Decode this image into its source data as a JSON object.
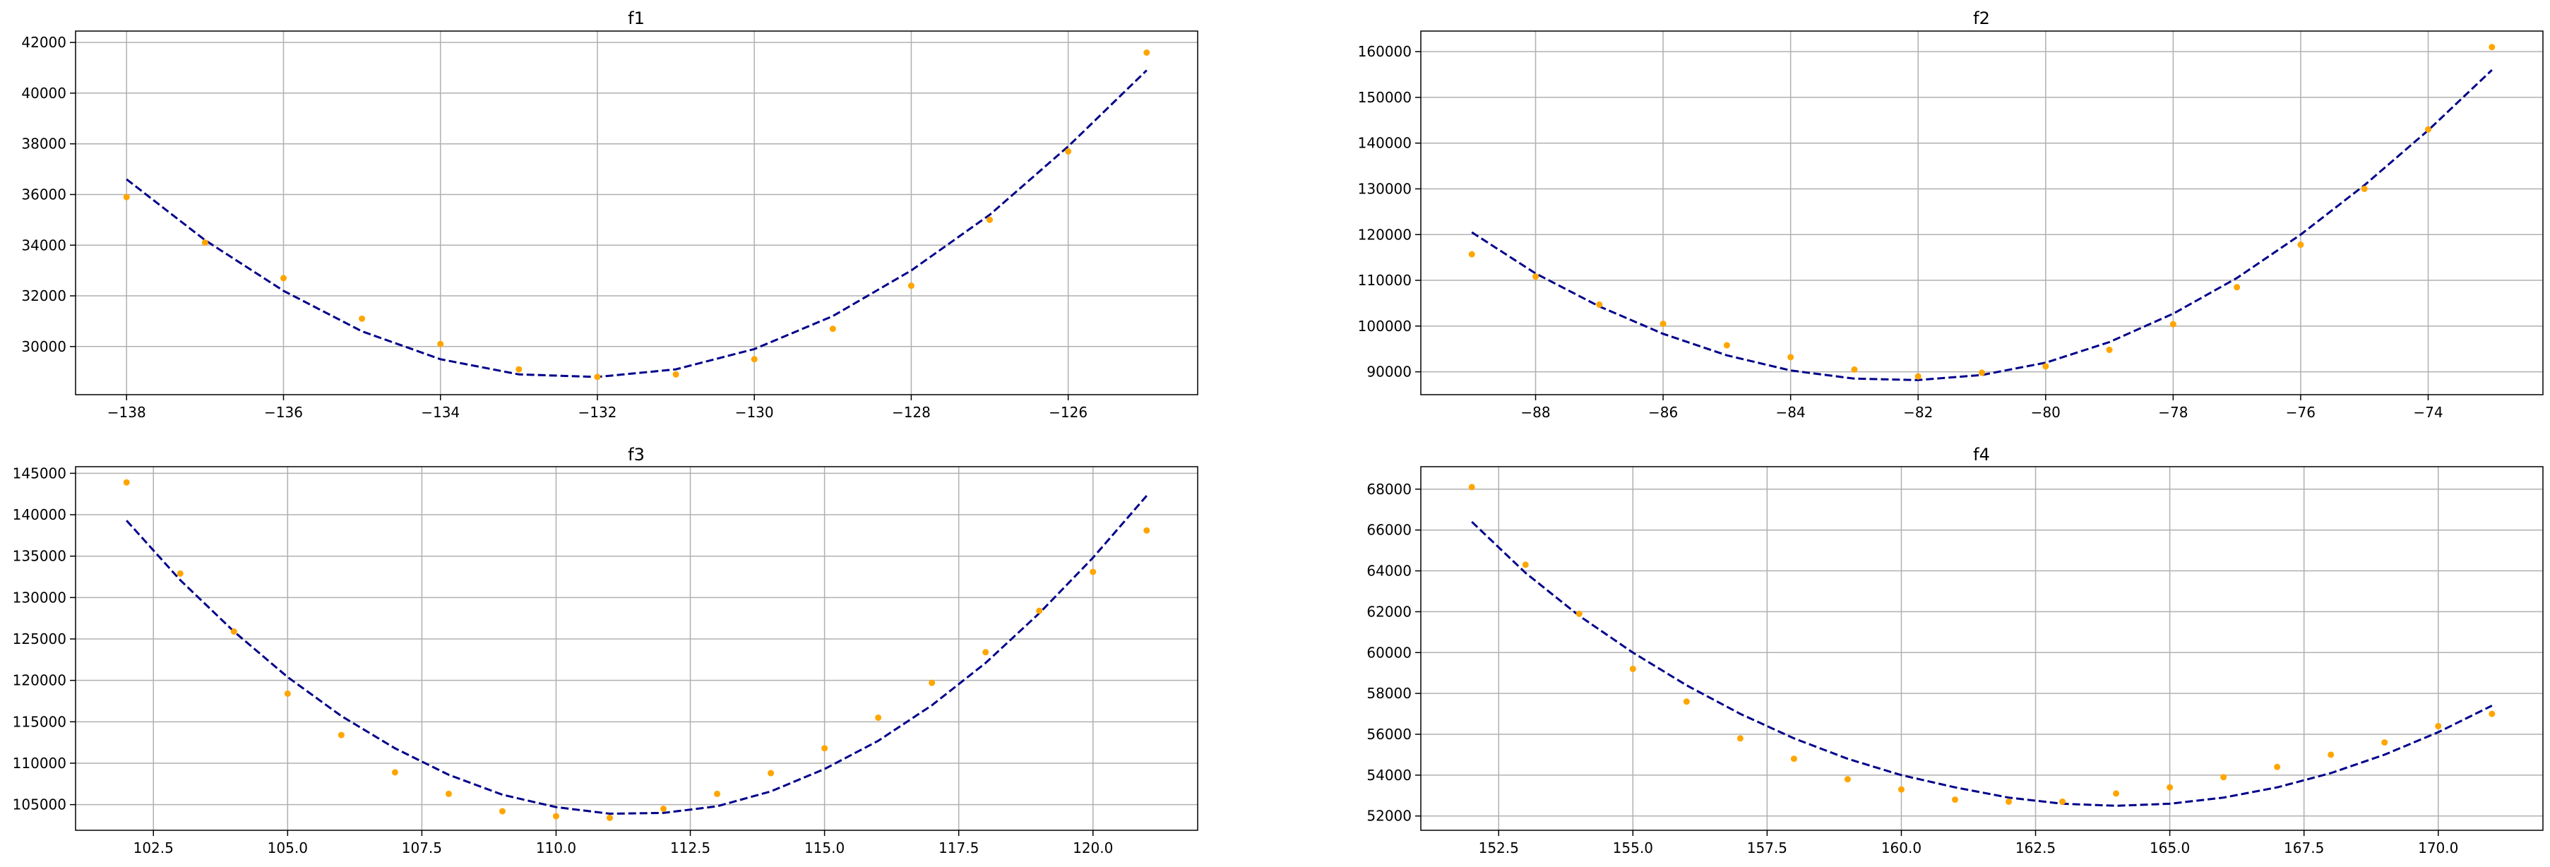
{
  "colors": {
    "fit_line": "#00008b",
    "points": "#ffa500",
    "grid": "#b0b0b0",
    "axes": "#000000"
  },
  "chart_data": [
    {
      "type": "scatter",
      "title": "f1",
      "xlabel": "",
      "ylabel": "",
      "grid": true,
      "xlim": [
        -138.65,
        -124.35
      ],
      "ylim": [
        28100,
        42450
      ],
      "xticks": [
        -138,
        -136,
        -134,
        -132,
        -130,
        -128,
        -126
      ],
      "xtick_labels": [
        "−138",
        "−136",
        "−134",
        "−132",
        "−130",
        "−128",
        "−126"
      ],
      "yticks": [
        30000,
        32000,
        34000,
        36000,
        38000,
        40000,
        42000
      ],
      "ytick_labels": [
        "30000",
        "32000",
        "34000",
        "36000",
        "38000",
        "40000",
        "42000"
      ],
      "series": [
        {
          "kind": "points",
          "x": [
            -138,
            -137,
            -136,
            -135,
            -134,
            -133,
            -132,
            -131,
            -130,
            -129,
            -128,
            -127,
            -126,
            -125
          ],
          "y": [
            35900,
            34100,
            32700,
            31100,
            30100,
            29100,
            28800,
            28900,
            29500,
            30700,
            32400,
            35000,
            37700,
            41600
          ]
        },
        {
          "kind": "fit-line",
          "x": [
            -138,
            -137,
            -136,
            -135,
            -134,
            -133,
            -132,
            -131,
            -130,
            -129,
            -128,
            -127,
            -126,
            -125
          ],
          "y": [
            36600,
            34200,
            32200,
            30600,
            29500,
            28900,
            28800,
            29100,
            29900,
            31200,
            33000,
            35200,
            37900,
            40900
          ]
        }
      ]
    },
    {
      "type": "scatter",
      "title": "f2",
      "xlabel": "",
      "ylabel": "",
      "grid": true,
      "xlim": [
        -89.8,
        -72.2
      ],
      "ylim": [
        85000,
        164500
      ],
      "xticks": [
        -88,
        -86,
        -84,
        -82,
        -80,
        -78,
        -76,
        -74
      ],
      "xtick_labels": [
        "−88",
        "−86",
        "−84",
        "−82",
        "−80",
        "−78",
        "−76",
        "−74"
      ],
      "yticks": [
        90000,
        100000,
        110000,
        120000,
        130000,
        140000,
        150000,
        160000
      ],
      "ytick_labels": [
        "90000",
        "100000",
        "110000",
        "120000",
        "130000",
        "140000",
        "150000",
        "160000"
      ],
      "series": [
        {
          "kind": "points",
          "x": [
            -89,
            -88,
            -87,
            -86,
            -85,
            -84,
            -83,
            -82,
            -81,
            -80,
            -79,
            -78,
            -77,
            -76,
            -75,
            -74,
            -73
          ],
          "y": [
            115700,
            110800,
            104700,
            100500,
            95800,
            93200,
            90500,
            89000,
            89800,
            91200,
            94800,
            100400,
            108500,
            117800,
            130000,
            143000,
            161000
          ]
        },
        {
          "kind": "fit-line",
          "x": [
            -89,
            -88,
            -87,
            -86,
            -85,
            -84,
            -83,
            -82,
            -81,
            -80,
            -79,
            -78,
            -77,
            -76,
            -75,
            -74,
            -73
          ],
          "y": [
            120500,
            111500,
            104300,
            98300,
            93600,
            90300,
            88500,
            88200,
            89300,
            92000,
            96500,
            102700,
            110500,
            120000,
            130800,
            142800,
            156000
          ]
        }
      ]
    },
    {
      "type": "scatter",
      "title": "f3",
      "xlabel": "",
      "ylabel": "",
      "grid": true,
      "xlim": [
        101.05,
        121.95
      ],
      "ylim": [
        101900,
        145800
      ],
      "xticks": [
        102.5,
        105.0,
        107.5,
        110.0,
        112.5,
        115.0,
        117.5,
        120.0
      ],
      "xtick_labels": [
        "102.5",
        "105.0",
        "107.5",
        "110.0",
        "112.5",
        "115.0",
        "117.5",
        "120.0"
      ],
      "yticks": [
        105000,
        110000,
        115000,
        120000,
        125000,
        130000,
        135000,
        140000,
        145000
      ],
      "ytick_labels": [
        "105000",
        "110000",
        "115000",
        "120000",
        "125000",
        "130000",
        "135000",
        "140000",
        "145000"
      ],
      "series": [
        {
          "kind": "points",
          "x": [
            102,
            103,
            104,
            105,
            106,
            107,
            108,
            109,
            110,
            111,
            112,
            113,
            114,
            115,
            116,
            117,
            118,
            119,
            120,
            121
          ],
          "y": [
            143900,
            132900,
            125900,
            118400,
            113400,
            108900,
            106300,
            104200,
            103600,
            103400,
            104500,
            106300,
            108800,
            111800,
            115500,
            119700,
            123400,
            128400,
            133100,
            138100
          ]
        },
        {
          "kind": "fit-line",
          "x": [
            102,
            103,
            104,
            105,
            106,
            107,
            108,
            109,
            110,
            111,
            112,
            113,
            114,
            115,
            116,
            117,
            118,
            119,
            120,
            121
          ],
          "y": [
            139300,
            132100,
            125900,
            120400,
            115700,
            111800,
            108600,
            106200,
            104700,
            103900,
            104000,
            104800,
            106600,
            109300,
            112700,
            117000,
            122100,
            128100,
            134800,
            142300
          ]
        }
      ]
    },
    {
      "type": "scatter",
      "title": "f4",
      "xlabel": "",
      "ylabel": "",
      "grid": true,
      "xlim": [
        151.05,
        171.95
      ],
      "ylim": [
        51300,
        69100
      ],
      "xticks": [
        152.5,
        155.0,
        157.5,
        160.0,
        162.5,
        165.0,
        167.5,
        170.0
      ],
      "xtick_labels": [
        "152.5",
        "155.0",
        "157.5",
        "160.0",
        "162.5",
        "165.0",
        "167.5",
        "170.0"
      ],
      "yticks": [
        52000,
        54000,
        56000,
        58000,
        60000,
        62000,
        64000,
        66000,
        68000
      ],
      "ytick_labels": [
        "52000",
        "54000",
        "56000",
        "58000",
        "60000",
        "62000",
        "64000",
        "66000",
        "68000"
      ],
      "series": [
        {
          "kind": "points",
          "x": [
            152,
            153,
            154,
            155,
            156,
            157,
            158,
            159,
            160,
            161,
            162,
            163,
            164,
            165,
            166,
            167,
            168,
            169,
            170,
            171
          ],
          "y": [
            68100,
            64300,
            61900,
            59200,
            57600,
            55800,
            54800,
            53800,
            53300,
            52800,
            52700,
            52700,
            53100,
            53400,
            53900,
            54400,
            55000,
            55600,
            56400,
            57000
          ]
        },
        {
          "kind": "fit-line",
          "x": [
            152,
            153,
            154,
            155,
            156,
            157,
            158,
            159,
            160,
            161,
            162,
            163,
            164,
            165,
            166,
            167,
            168,
            169,
            170,
            171
          ],
          "y": [
            66400,
            63900,
            61800,
            60000,
            58400,
            57000,
            55800,
            54800,
            54000,
            53400,
            52900,
            52600,
            52500,
            52600,
            52900,
            53400,
            54100,
            55000,
            56100,
            57400
          ]
        }
      ]
    }
  ]
}
